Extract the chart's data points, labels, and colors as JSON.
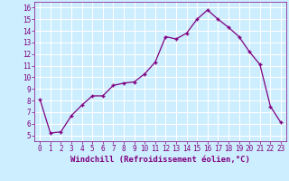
{
  "x": [
    0,
    1,
    2,
    3,
    4,
    5,
    6,
    7,
    8,
    9,
    10,
    11,
    12,
    13,
    14,
    15,
    16,
    17,
    18,
    19,
    20,
    21,
    22,
    23
  ],
  "y": [
    8.1,
    5.2,
    5.3,
    6.7,
    7.6,
    8.4,
    8.4,
    9.3,
    9.5,
    9.6,
    10.3,
    11.3,
    13.5,
    13.3,
    13.8,
    15.0,
    15.8,
    15.0,
    14.3,
    13.5,
    12.2,
    11.1,
    7.5,
    6.1
  ],
  "line_color": "#800080",
  "marker": "+",
  "marker_color": "#800080",
  "bg_color": "#cceeff",
  "grid_color": "#ffffff",
  "xlabel": "Windchill (Refroidissement éolien,°C)",
  "xlim": [
    -0.5,
    23.5
  ],
  "ylim": [
    4.5,
    16.5
  ],
  "yticks": [
    5,
    6,
    7,
    8,
    9,
    10,
    11,
    12,
    13,
    14,
    15,
    16
  ],
  "xticks": [
    0,
    1,
    2,
    3,
    4,
    5,
    6,
    7,
    8,
    9,
    10,
    11,
    12,
    13,
    14,
    15,
    16,
    17,
    18,
    19,
    20,
    21,
    22,
    23
  ],
  "tick_fontsize": 5.5,
  "label_fontsize": 6.5
}
